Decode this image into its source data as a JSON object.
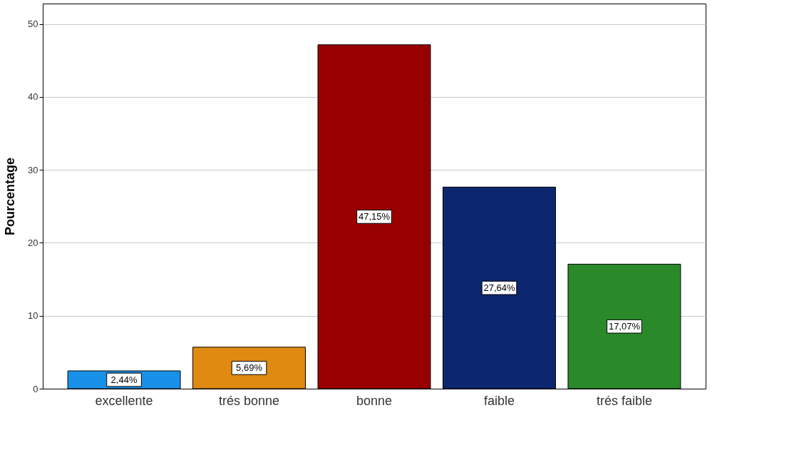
{
  "chart_data": {
    "type": "bar",
    "ylabel": "Pourcentage",
    "categories": [
      "excellente",
      "trés bonne",
      "bonne",
      "faible",
      "trés faible"
    ],
    "values": [
      2.44,
      5.69,
      47.15,
      27.64,
      17.07
    ],
    "colors": [
      "#1a91e8",
      "#e08a12",
      "#990000",
      "#0c2670",
      "#2a8a2a"
    ],
    "value_labels": [
      "2,44%",
      "5,69%",
      "47,15%",
      "27,64%",
      "17,07%"
    ],
    "ylim": [
      0,
      52.8
    ],
    "yticks": [
      0,
      10,
      20,
      30,
      40,
      50
    ],
    "grid": "y",
    "legend": false
  }
}
